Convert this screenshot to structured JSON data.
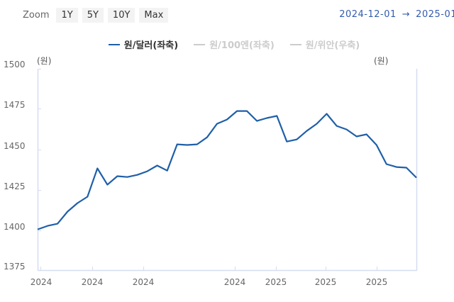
{
  "toolbar": {
    "zoom_label": "Zoom",
    "zoom_buttons": [
      "1Y",
      "5Y",
      "10Y",
      "Max"
    ],
    "range_start": "2024-12-01",
    "range_arrow": "→",
    "range_end": "2025-01"
  },
  "legend": [
    {
      "label": "원/달러(좌축)",
      "color": "#1f5fa8",
      "active": true
    },
    {
      "label": "원/100엔(좌축)",
      "color": "#cccccc",
      "active": false
    },
    {
      "label": "원/위안(우축)",
      "color": "#cccccc",
      "active": false
    }
  ],
  "axes": {
    "left_unit": "(원)",
    "right_unit": "(원)",
    "y_ticks": [
      "1500",
      "1475",
      "1450",
      "1425",
      "1400",
      "1375"
    ],
    "x_ticks": [
      "2024",
      "2024",
      "2024",
      "2024",
      "2025",
      "2025",
      "2025"
    ]
  },
  "chart_data": {
    "type": "line",
    "title": "",
    "xlabel": "",
    "ylabel": "(원)",
    "ylim": [
      1375,
      1500
    ],
    "yticks": [
      1375,
      1400,
      1425,
      1450,
      1475,
      1500
    ],
    "xtick_labels": [
      "2024",
      "2024",
      "2024",
      "2024",
      "2025",
      "2025",
      "2025"
    ],
    "legend": [
      "원/달러(좌축)",
      "원/100엔(좌축)",
      "원/위안(우축)"
    ],
    "legend_position": "top",
    "grid": false,
    "series": [
      {
        "name": "원/달러(좌축)",
        "color": "#1f5fa8",
        "values": [
          1398.6,
          1400.8,
          1402.1,
          1409.5,
          1414.7,
          1418.6,
          1436.0,
          1426.0,
          1431.2,
          1430.7,
          1432.0,
          1434.2,
          1437.7,
          1434.6,
          1450.7,
          1450.3,
          1450.7,
          1455.0,
          1463.3,
          1465.9,
          1471.1,
          1471.1,
          1465.0,
          1466.8,
          1468.1,
          1452.4,
          1453.7,
          1458.9,
          1463.3,
          1469.4,
          1462.0,
          1459.8,
          1455.5,
          1456.8,
          1450.3,
          1438.6,
          1436.8,
          1436.4,
          1430.3
        ]
      }
    ]
  }
}
